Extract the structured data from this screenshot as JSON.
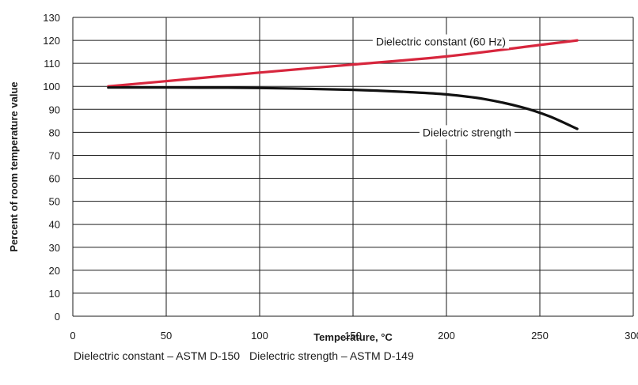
{
  "chart_data": {
    "type": "line",
    "title": "",
    "xlabel": "Temperature, °C",
    "ylabel": "Percent of room temperature value",
    "xlim": [
      0,
      300
    ],
    "ylim": [
      0,
      130
    ],
    "xticks": [
      0,
      50,
      100,
      150,
      200,
      250,
      300
    ],
    "yticks": [
      0,
      10,
      20,
      30,
      40,
      50,
      60,
      70,
      80,
      90,
      100,
      110,
      120,
      130
    ],
    "grid": true,
    "series": [
      {
        "name": "Dielectric constant (60 Hz)",
        "color": "#d7263d",
        "x": [
          19,
          60,
          100,
          150,
          200,
          250,
          270
        ],
        "y": [
          100,
          103,
          106,
          109.5,
          113,
          118,
          120
        ]
      },
      {
        "name": "Dielectric strength",
        "color": "#111111",
        "x": [
          19,
          50,
          100,
          150,
          180,
          200,
          220,
          240,
          255,
          270
        ],
        "y": [
          99.5,
          99.5,
          99.3,
          98.5,
          97.5,
          96.5,
          94.5,
          91,
          87,
          81.5
        ]
      }
    ],
    "annotations": [
      "Dielectric constant (60 Hz)",
      "Dielectric strength"
    ]
  },
  "footnotes": {
    "constant": "Dielectric constant – ASTM D-150",
    "strength": "Dielectric strength – ASTM D-149"
  }
}
